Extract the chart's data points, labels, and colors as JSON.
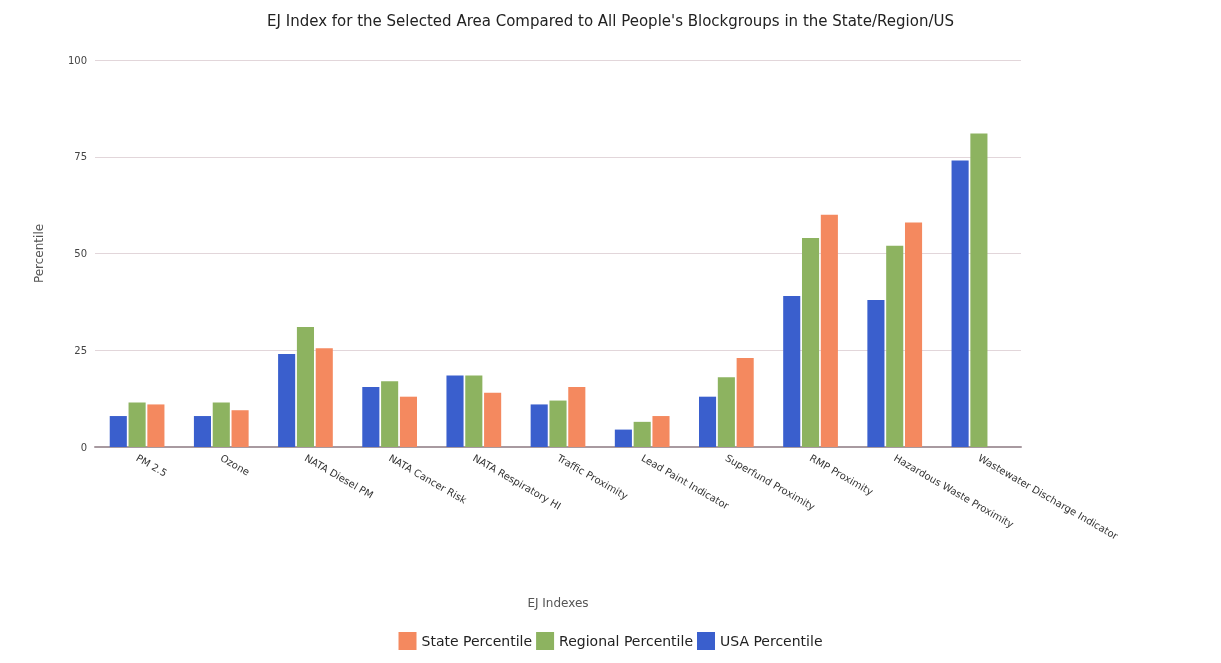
{
  "chart_data": {
    "type": "bar",
    "title": "EJ Index for the Selected Area Compared to All People's Blockgroups in the State/Region/US",
    "xlabel": "EJ Indexes",
    "ylabel": "Percentile",
    "categories": [
      "PM 2.5",
      "Ozone",
      "NATA Diesel PM",
      "NATA Cancer Risk",
      "NATA Respiratory HI",
      "Traffic Proximity",
      "Lead Paint Indicator",
      "Superfund Proximity",
      "RMP Proximity",
      "Hazardous Waste Proximity",
      "Wastewater Discharge Indicator"
    ],
    "series": [
      {
        "name": "USA Percentile",
        "color": "#3a5fcd",
        "values": [
          8,
          8,
          24,
          15.5,
          18.5,
          11,
          4.5,
          13,
          39,
          38,
          74
        ]
      },
      {
        "name": "Regional Percentile",
        "color": "#8db360",
        "values": [
          11.5,
          11.5,
          31,
          17,
          18.5,
          12,
          6.5,
          18,
          54,
          52,
          81
        ]
      },
      {
        "name": "State Percentile",
        "color": "#f4895f",
        "values": [
          11,
          9.5,
          25.5,
          13,
          14,
          15.5,
          8,
          23,
          60,
          58,
          null
        ]
      }
    ],
    "ylim": [
      0,
      100
    ],
    "yticks": [
      0,
      25,
      50,
      75,
      100
    ],
    "grid": "y",
    "legend": "bottom"
  }
}
